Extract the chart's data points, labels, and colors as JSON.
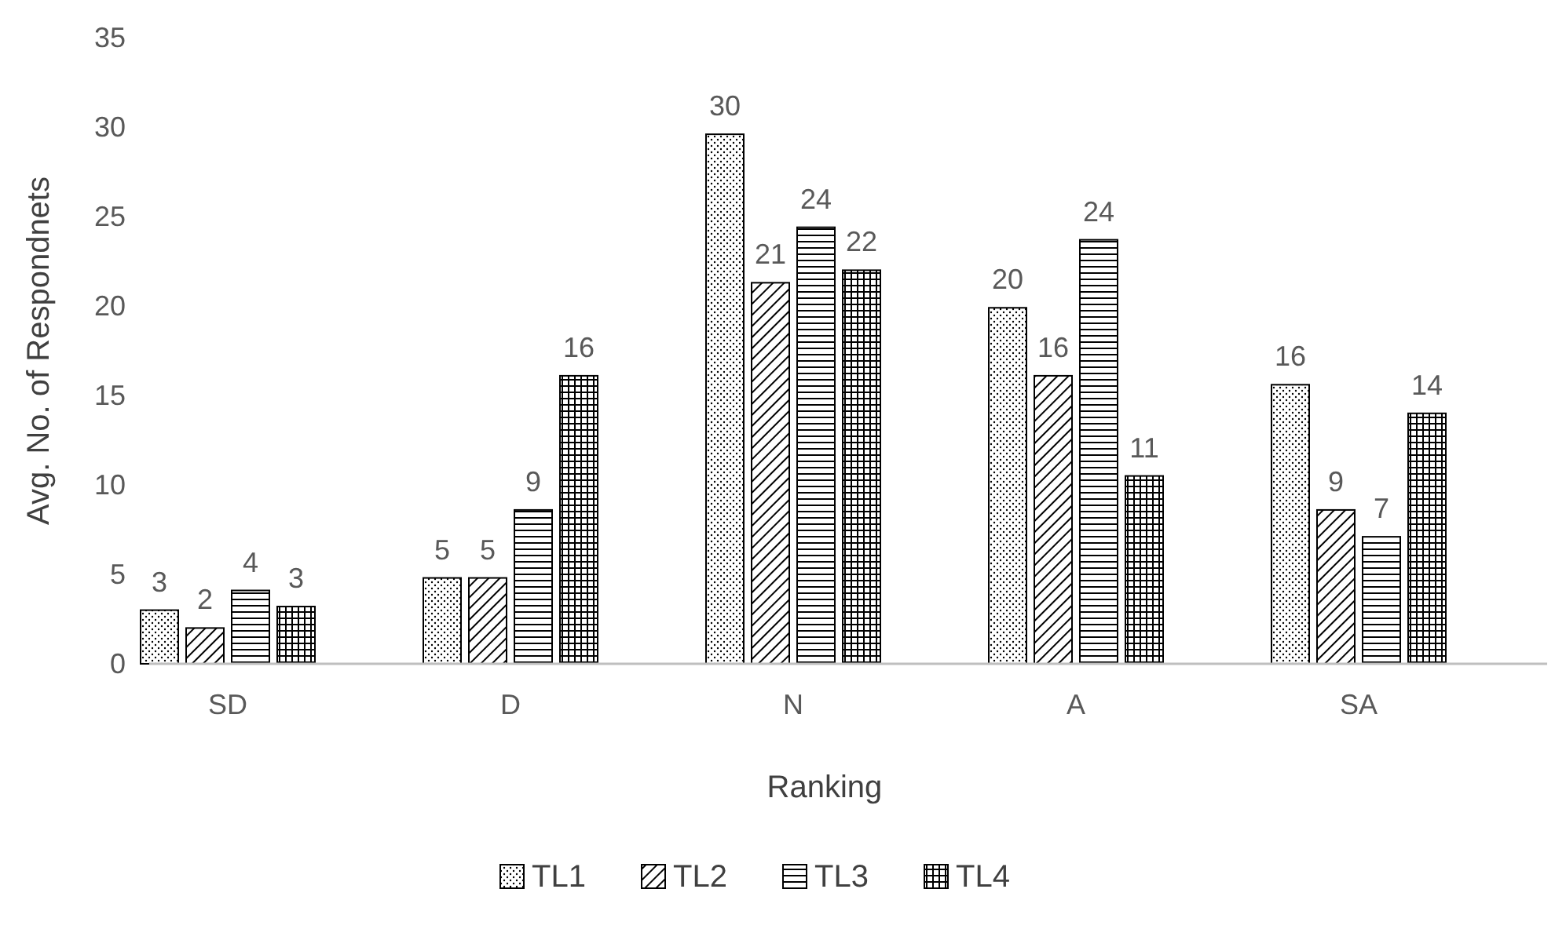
{
  "chart_data": {
    "type": "bar",
    "xlabel": "Ranking",
    "ylabel": "Avg. No. of Respondnets",
    "categories": [
      "SD",
      "D",
      "N",
      "A",
      "SA"
    ],
    "series": [
      {
        "name": "TL1",
        "color": "#000000",
        "values": [
          3,
          4.8,
          29.6,
          19.9,
          15.6
        ],
        "value_labels": [
          "3",
          "5",
          "30",
          "20",
          "16"
        ]
      },
      {
        "name": "TL2",
        "color": "#000000",
        "values": [
          2,
          4.8,
          21.3,
          16.1,
          8.6
        ],
        "value_labels": [
          "2",
          "5",
          "21",
          "16",
          "9"
        ]
      },
      {
        "name": "TL3",
        "color": "#000000",
        "values": [
          4.1,
          8.6,
          24.4,
          23.7,
          7.1
        ],
        "value_labels": [
          "4",
          "9",
          "24",
          "24",
          "7"
        ]
      },
      {
        "name": "TL4",
        "color": "#000000",
        "values": [
          3.2,
          16.1,
          22,
          10.5,
          14
        ],
        "value_labels": [
          "3",
          "16",
          "22",
          "11",
          "14"
        ]
      }
    ],
    "ylim": [
      0,
      35
    ],
    "yticks": [
      0,
      5,
      10,
      15,
      20,
      25,
      30,
      35
    ],
    "grid": false,
    "legend": "bottom"
  }
}
